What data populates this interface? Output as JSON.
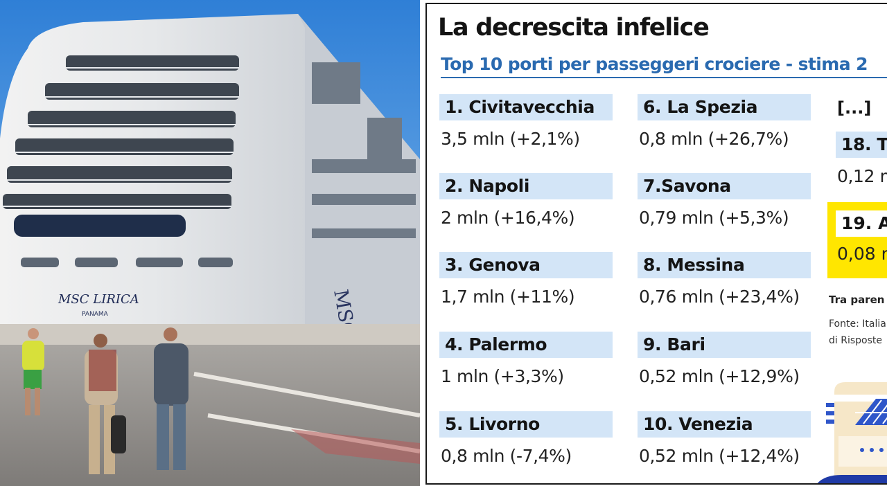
{
  "photo": {
    "ship_hull_text": "MSC LIRICA",
    "ship_flag_text": "PANAMA",
    "ship_bow_logo": "MSC"
  },
  "infographic": {
    "title": "La decrescita infelice",
    "subtitle": "Top 10 porti per passeggeri crociere - stima 2",
    "ellipsis": "[...]",
    "ports": [
      {
        "name": "1. Civitavecchia",
        "value": "3,5 mln (+2,1%)"
      },
      {
        "name": "2. Napoli",
        "value": "2 mln (+16,4%)"
      },
      {
        "name": "3. Genova",
        "value": "1,7 mln (+11%)"
      },
      {
        "name": "4. Palermo",
        "value": "1 mln (+3,3%)"
      },
      {
        "name": "5. Livorno",
        "value": "0,8 mln (-7,4%)"
      },
      {
        "name": "6. La Spezia",
        "value": "0,8 mln (+26,7%)"
      },
      {
        "name": "7.Savona",
        "value": "0,79 mln (+5,3%)"
      },
      {
        "name": "8. Messina",
        "value": "0,76 mln (+23,4%)"
      },
      {
        "name": "9. Bari",
        "value": "0,52 mln (+12,9%)"
      },
      {
        "name": "10. Venezia",
        "value": "0,52 mln (+12,4%)"
      }
    ],
    "extra_ports": [
      {
        "name": "18. T",
        "value": "0,12 m"
      },
      {
        "name": "19. A",
        "value": "0,08 m"
      }
    ],
    "note": "Tra paren",
    "source_line1": "Fonte: Italia",
    "source_line2": "di Risposte",
    "colors": {
      "label_bg": "#d3e5f7",
      "subtitle": "#2a6ab0",
      "highlight": "#ffe600"
    }
  }
}
